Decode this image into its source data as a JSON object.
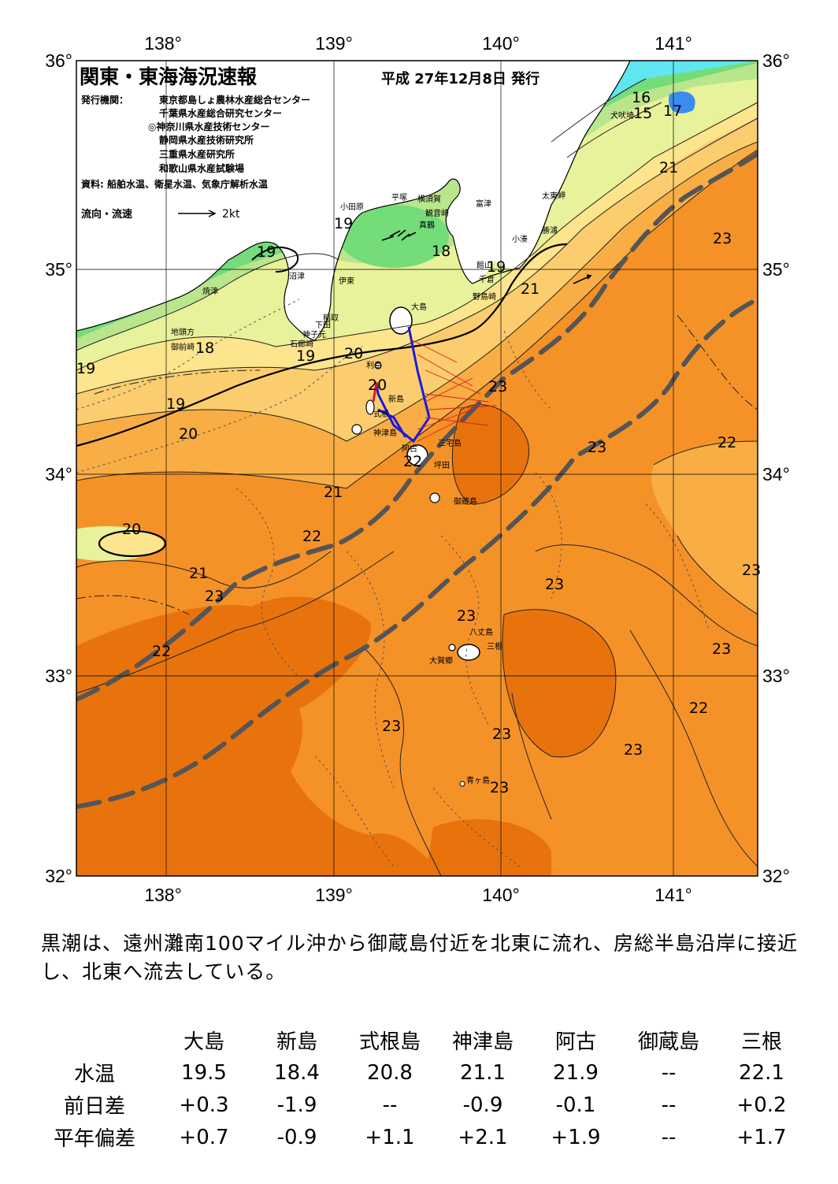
{
  "header": {
    "title": "関東・東海海況速報",
    "date": "平成 27年12月8日 発行",
    "publishers_label": "発行機関：",
    "publishers": [
      "東京都島しょ農林水産総合センター",
      "千葉県水産総合研究センター",
      "◎神奈川県水産技術センター",
      "静岡県水産技術研究所",
      "三重県水産研究所",
      "和歌山県水産試験場"
    ],
    "sources": "資料: 船舶水温、衛星水温、気象庁解析水温",
    "flow_legend": "流向・流速",
    "flow_speed": "2kt"
  },
  "axes": {
    "lon": [
      "138°",
      "139°",
      "140°",
      "141°"
    ],
    "lat": [
      "36°",
      "35°",
      "34°",
      "33°",
      "32°"
    ]
  },
  "place_labels": {
    "inubosaki": "犬吠埼",
    "taitomisaki": "太東岬",
    "katsuura": "勝浦",
    "kominato": "小湊",
    "tateyama": "館山",
    "chikura": "千倉",
    "nojimazaki": "野島崎",
    "futtsu": "富津",
    "yokosuka": "横須賀",
    "kannonzaki": "観音崎",
    "hiratsuka": "平塚",
    "odawara": "小田原",
    "manazuru": "真鶴",
    "numazu": "沼津",
    "ito": "伊東",
    "inatori": "稲取",
    "shimoda": "下田",
    "mikomoto": "神子元",
    "irozaki": "石廊崎",
    "yaizu": "焼津",
    "jitokata": "地頭方",
    "omaezaki": "御前崎",
    "oshima": "大島",
    "toshima": "利島",
    "niijima": "新島",
    "shikinejima": "式根",
    "kozushima": "神津島",
    "ako": "阿古",
    "miyakejima": "三宅島",
    "tsubota": "坪田",
    "mikurajima": "御蔵島",
    "hachijojima": "八丈島",
    "mitsune": "三根",
    "okago": "大賀郷",
    "aogashima": "青ヶ島"
  },
  "isotherm_labels": [
    "16",
    "15",
    "17",
    "21",
    "23",
    "19",
    "19",
    "18",
    "19",
    "21",
    "18",
    "19",
    "20",
    "19",
    "20",
    "23",
    "19",
    "20",
    "23",
    "22",
    "21",
    "22",
    "20",
    "21",
    "23",
    "23",
    "22",
    "23",
    "23",
    "22",
    "23",
    "23",
    "23",
    "22",
    "23",
    "23"
  ],
  "summary": "黒潮は、遠州灘南100マイル沖から御蔵島付近を北東に流れ、房総半島沿岸に接近し、北東へ流去している。",
  "observations": {
    "stations": [
      "大島",
      "新島",
      "式根島",
      "神津島",
      "阿古",
      "御蔵島",
      "三根"
    ],
    "rows": [
      {
        "label": "水温",
        "values": [
          "19.5",
          "18.4",
          "20.8",
          "21.1",
          "21.9",
          "--",
          "22.1"
        ]
      },
      {
        "label": "前日差",
        "values": [
          "+0.3",
          "-1.9",
          "--",
          "-0.9",
          "-0.1",
          "--",
          "+0.2"
        ]
      },
      {
        "label": "平年偏差",
        "values": [
          "+0.7",
          "-0.9",
          "+1.1",
          "+2.1",
          "+1.9",
          "--",
          "+1.7"
        ]
      }
    ]
  },
  "colors": {
    "warm_core": "#e8730d",
    "warm": "#f59227",
    "temp_22": "#f8ad45",
    "temp_21": "#fbcd6e",
    "temp_20": "#fce58c",
    "temp_19": "#e7f29a",
    "temp_18": "#b9e58c",
    "cold": "#74dc79",
    "coldest": "#60e6ee",
    "land": "#ffffff",
    "kuroshio_axis": "#555555",
    "track": "#1a1adc",
    "track_current": "#e21a1a"
  }
}
